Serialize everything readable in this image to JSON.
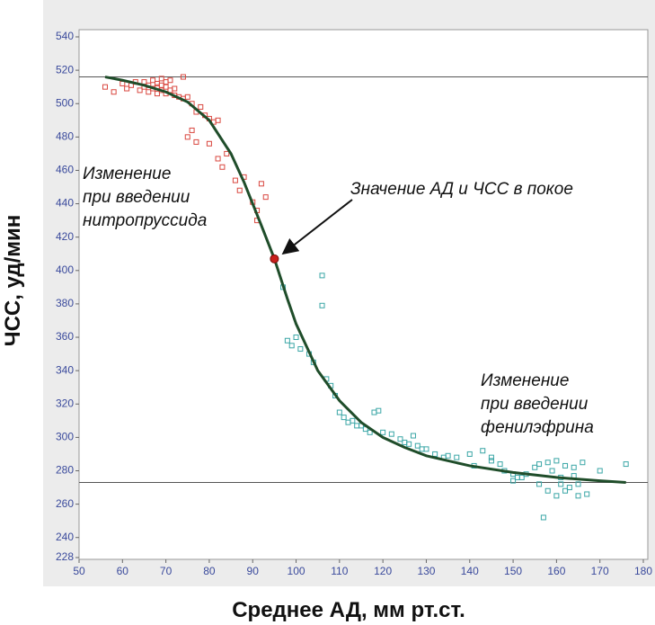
{
  "chart_data": {
    "type": "scatter",
    "xlabel": "Среднее АД, мм рт.ст.",
    "ylabel": "ЧСС, уд/мин",
    "xlim": [
      50,
      180
    ],
    "xticks": [
      50,
      60,
      70,
      80,
      90,
      100,
      110,
      120,
      130,
      140,
      150,
      160,
      170,
      180
    ],
    "ylim": [
      228,
      540
    ],
    "yticks": [
      228,
      240,
      260,
      280,
      300,
      320,
      340,
      360,
      380,
      400,
      420,
      440,
      460,
      480,
      500,
      520,
      540
    ],
    "hlines": [
      516,
      273
    ],
    "series": [
      {
        "style": "open-square",
        "color": "#d9473f",
        "x": [
          56,
          58,
          60,
          61,
          62,
          63,
          64,
          65,
          65,
          66,
          66,
          67,
          67,
          68,
          68,
          68,
          69,
          69,
          69,
          70,
          70,
          70,
          71,
          71,
          72,
          72,
          73,
          74,
          74,
          75,
          76,
          77,
          78,
          79,
          80,
          81,
          82,
          75,
          76,
          77,
          80,
          82,
          83,
          84,
          86,
          87,
          88,
          90,
          91,
          92,
          93,
          91
        ],
        "values": [
          510,
          507,
          512,
          509,
          511,
          513,
          508,
          510,
          513,
          507,
          511,
          509,
          514,
          506,
          512,
          510,
          508,
          515,
          511,
          506,
          510,
          513,
          508,
          514,
          509,
          505,
          504,
          516,
          503,
          504,
          500,
          495,
          498,
          493,
          491,
          489,
          490,
          480,
          484,
          477,
          476,
          467,
          462,
          470,
          454,
          448,
          456,
          441,
          436,
          452,
          444,
          430
        ]
      },
      {
        "style": "open-square",
        "color": "#3aa6a6",
        "x": [
          97,
          98,
          99,
          100,
          101,
          103,
          104,
          106,
          106,
          107,
          108,
          109,
          110,
          111,
          112,
          113,
          114,
          115,
          116,
          117,
          118,
          119,
          120,
          122,
          124,
          125,
          126,
          127,
          128,
          129,
          130,
          132,
          134,
          135,
          137,
          140,
          141,
          143,
          145,
          145,
          147,
          148,
          150,
          150,
          151,
          152,
          153,
          155,
          156,
          156,
          157,
          158,
          159,
          160,
          161,
          161,
          162,
          162,
          163,
          164,
          165,
          165,
          166,
          170,
          176,
          158,
          160,
          164,
          167
        ],
        "values": [
          390,
          358,
          355,
          360,
          353,
          350,
          345,
          397,
          379,
          335,
          331,
          325,
          315,
          312,
          309,
          310,
          307,
          307,
          305,
          303,
          315,
          316,
          303,
          302,
          299,
          297,
          296,
          301,
          295,
          293,
          293,
          290,
          288,
          289,
          288,
          290,
          283,
          292,
          288,
          286,
          284,
          280,
          278,
          274,
          276,
          276,
          278,
          282,
          284,
          272,
          252,
          268,
          280,
          265,
          276,
          272,
          268,
          283,
          270,
          277,
          272,
          265,
          285,
          280,
          284,
          285,
          286,
          282,
          266
        ]
      },
      {
        "style": "line",
        "color": "#1f4d2a",
        "x": [
          56,
          60,
          65,
          70,
          75,
          80,
          85,
          88,
          90,
          92,
          95,
          98,
          100,
          105,
          110,
          115,
          120,
          125,
          130,
          140,
          150,
          160,
          170,
          176
        ],
        "values": [
          516,
          514,
          511,
          507,
          501,
          490,
          470,
          453,
          440,
          427,
          407,
          383,
          368,
          340,
          322,
          309,
          300,
          294,
          289,
          283,
          279,
          276,
          274,
          273
        ]
      },
      {
        "style": "filled-dot",
        "color": "#c8201c",
        "x": [
          95
        ],
        "values": [
          407
        ]
      }
    ],
    "annotations": [
      {
        "lines": [
          "Изменение",
          "при введении",
          "нитропруссида"
        ]
      },
      {
        "lines": [
          "Значение АД и ЧСС в покое"
        ]
      },
      {
        "lines": [
          "Изменение",
          "при введении",
          "фенилэфрина"
        ]
      }
    ]
  }
}
